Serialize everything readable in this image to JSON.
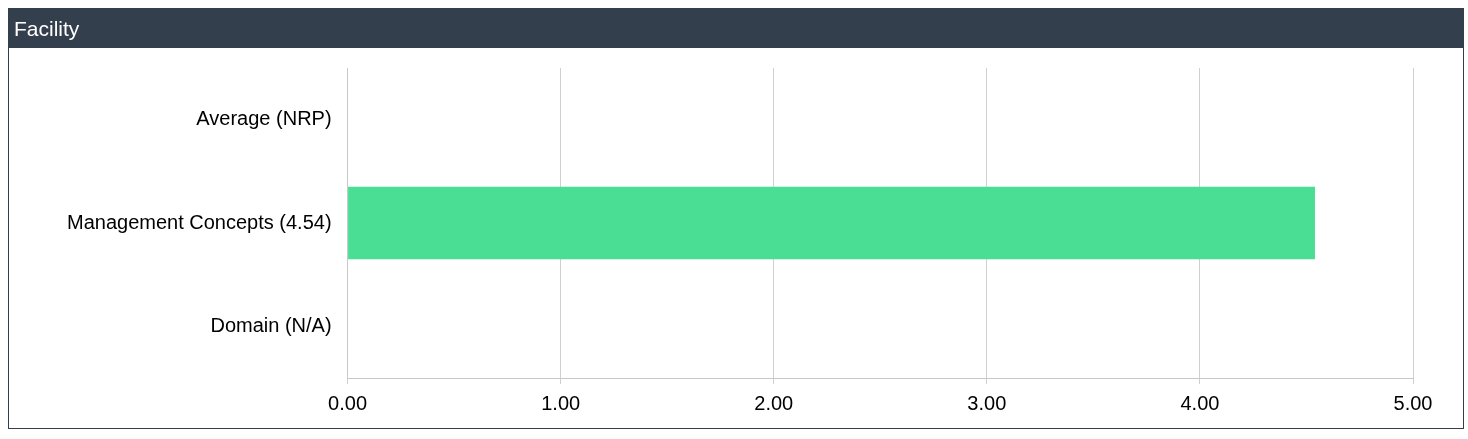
{
  "chart_data": {
    "type": "bar",
    "title": "Facility",
    "orientation": "horizontal",
    "categories": [
      "Average (NRP)",
      "Management Concepts (4.54)",
      "Domain (N/A)"
    ],
    "values": [
      null,
      4.54,
      null
    ],
    "color": "#4ade94",
    "xlim": [
      0,
      5
    ],
    "xticks": [
      {
        "value": 0,
        "label": "0.00"
      },
      {
        "value": 1,
        "label": "1.00"
      },
      {
        "value": 2,
        "label": "2.00"
      },
      {
        "value": 3,
        "label": "3.00"
      },
      {
        "value": 4,
        "label": "4.00"
      },
      {
        "value": 5,
        "label": "5.00"
      }
    ],
    "grid": "x",
    "legend": false
  }
}
